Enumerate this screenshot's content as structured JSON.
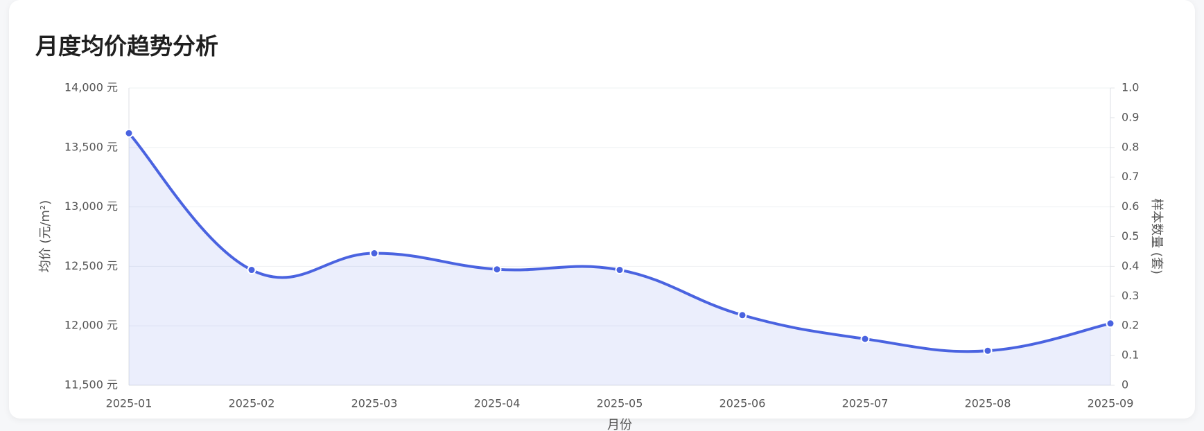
{
  "title": "月度均价趋势分析",
  "chart_data": {
    "type": "line",
    "x_label": "月份",
    "y_label": "均价 (元/m²)",
    "y2_label": "样本数量 (套)",
    "categories": [
      "2025-01",
      "2025-02",
      "2025-03",
      "2025-04",
      "2025-05",
      "2025-06",
      "2025-07",
      "2025-08",
      "2025-09"
    ],
    "series": [
      {
        "color": "#4a63e0",
        "values": [
          13620,
          12470,
          12610,
          12475,
          12470,
          12090,
          11890,
          11790,
          12020
        ]
      }
    ],
    "ylim": [
      11500,
      14000
    ],
    "yticks": [
      {
        "value": 11500,
        "label": "11,500 元"
      },
      {
        "value": 12000,
        "label": "12,000 元"
      },
      {
        "value": 12500,
        "label": "12,500 元"
      },
      {
        "value": 13000,
        "label": "13,000 元"
      },
      {
        "value": 13500,
        "label": "13,500 元"
      },
      {
        "value": 14000,
        "label": "14,000 元"
      }
    ],
    "y2lim": [
      0,
      1
    ],
    "y2ticks": [
      0,
      0.1,
      0.2,
      0.3,
      0.4,
      0.5,
      0.6,
      0.7,
      0.8,
      0.9,
      {
        "value": 1,
        "label": "1.0"
      }
    ],
    "grid": true,
    "fill": true
  }
}
